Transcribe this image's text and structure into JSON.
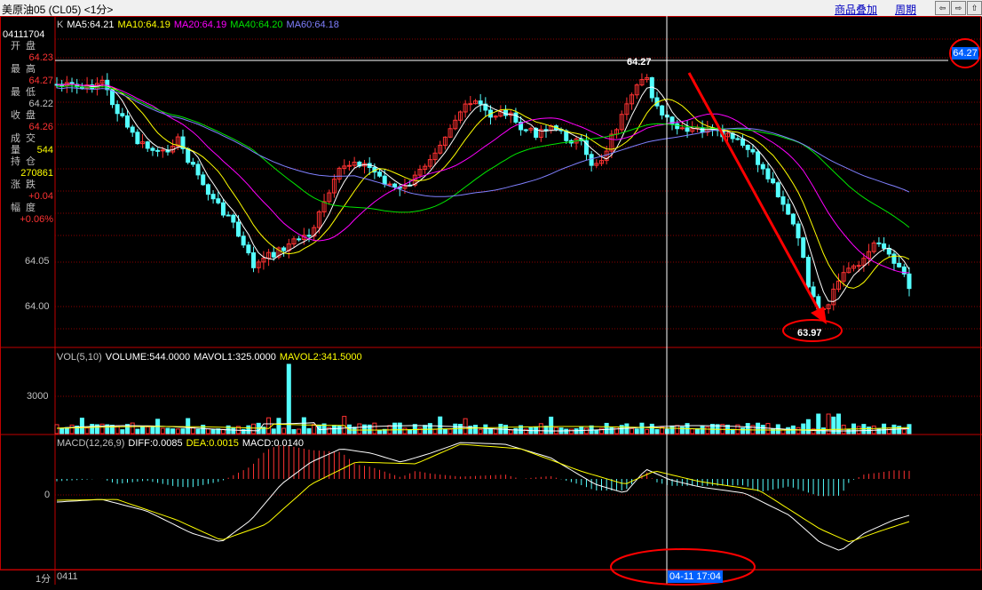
{
  "window": {
    "title": "美原油05 (CL05) <1分>",
    "overlay_link": "商品叠加",
    "period_link": "周期",
    "nav_buttons": [
      "⇦",
      "⇨",
      "⇧"
    ]
  },
  "colors": {
    "up": "#ff3232",
    "down": "#54ffff",
    "ma5": "#ffffff",
    "ma10": "#ffff00",
    "ma20": "#ff00ff",
    "ma40": "#00e600",
    "ma60": "#8080ff",
    "grid": "#8b0000",
    "axis": "#c00000",
    "annotation": "#ff0000"
  },
  "info_panel": {
    "code": "04111704",
    "rows": [
      {
        "label": "开盘",
        "value": "64.23",
        "color": "#ff3232"
      },
      {
        "label": "最高",
        "value": "64.27",
        "color": "#ff3232"
      },
      {
        "label": "最低",
        "value": "64.22",
        "color": "#c0c0c0"
      },
      {
        "label": "收盘",
        "value": "64.26",
        "color": "#ff3232"
      },
      {
        "label": "成交量",
        "value": "544",
        "color": "#ffff00"
      },
      {
        "label": "持仓",
        "value": "270861",
        "color": "#ffff00"
      },
      {
        "label": "涨跌",
        "value": "+0.04",
        "color": "#ff3232"
      },
      {
        "label": "幅度",
        "value": "+0.06%",
        "color": "#ff3232"
      }
    ]
  },
  "price_panel": {
    "legend": [
      {
        "text": "K",
        "color": "#c0c0c0"
      },
      {
        "text": "MA5:64.21",
        "color": "#ffffff"
      },
      {
        "text": "MA10:64.19",
        "color": "#ffff00"
      },
      {
        "text": "MA20:64.19",
        "color": "#ff00ff"
      },
      {
        "text": "MA40:64.20",
        "color": "#00e600"
      },
      {
        "text": "MA60:64.18",
        "color": "#8080ff"
      }
    ],
    "y_ticks": [
      "64.05",
      "64.00"
    ],
    "cursor_price_label": "64.27",
    "cursor_price_badge": "64.27",
    "low_label": "63.97"
  },
  "volume_panel": {
    "legend": [
      {
        "text": "VOL(5,10)",
        "color": "#c0c0c0"
      },
      {
        "text": "VOLUME:544.0000",
        "color": "#ffffff"
      },
      {
        "text": "MAVOL1:325.0000",
        "color": "#ffffff"
      },
      {
        "text": "MAVOL2:341.5000",
        "color": "#ffff00"
      }
    ],
    "y_ticks": [
      "3000"
    ]
  },
  "macd_panel": {
    "legend": [
      {
        "text": "MACD(12,26,9)",
        "color": "#c0c0c0"
      },
      {
        "text": "DIFF:0.0085",
        "color": "#ffffff"
      },
      {
        "text": "DEA:0.0015",
        "color": "#ffff00"
      },
      {
        "text": "MACD:0.0140",
        "color": "#ffffff"
      }
    ],
    "y_ticks": [
      "0"
    ]
  },
  "bottom_bar": {
    "period_label": "1分",
    "start_date": "0411",
    "cursor_time": "04-11 17:04"
  }
}
